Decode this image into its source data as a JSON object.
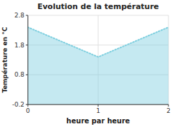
{
  "chart_data": {
    "type": "area",
    "title": "Evolution de la température",
    "xlabel": "heure par heure",
    "ylabel": "Température en °C",
    "x": [
      0,
      1,
      2
    ],
    "values": [
      2.4,
      1.4,
      2.4
    ],
    "color": "#7ecfdf",
    "line_style": "dotted",
    "xlim": [
      0,
      2
    ],
    "ylim": [
      -0.2,
      2.8
    ],
    "xticks": [
      0,
      1,
      2
    ],
    "yticks": [
      -0.2,
      0.8,
      1.8,
      2.8
    ],
    "grid": true
  }
}
